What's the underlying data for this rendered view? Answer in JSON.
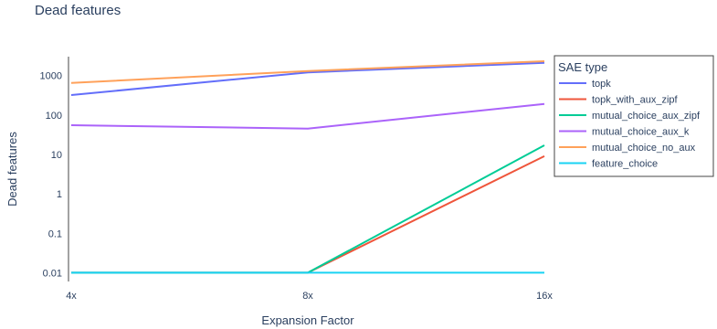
{
  "chart_data": {
    "type": "line",
    "title": "Dead features",
    "xlabel": "Expansion Factor",
    "ylabel": "Dead features",
    "y_scale": "log",
    "ylim": [
      0.006,
      3000
    ],
    "x_categories": [
      "4x",
      "8x",
      "16x"
    ],
    "y_ticks": [
      {
        "value": 1000,
        "label": "1000"
      },
      {
        "value": 100,
        "label": "100"
      },
      {
        "value": 10,
        "label": "10"
      },
      {
        "value": 1,
        "label": "1"
      },
      {
        "value": 0.1,
        "label": "0.1"
      },
      {
        "value": 0.01,
        "label": "0.01"
      }
    ],
    "grid": false,
    "legend_title": "SAE type",
    "legend_position": "right",
    "series": [
      {
        "name": "topk",
        "color": "#636efa",
        "values": [
          320,
          1200,
          2100
        ]
      },
      {
        "name": "topk_with_aux_zipf",
        "color": "#ef553b",
        "values": [
          0.01,
          0.01,
          9
        ]
      },
      {
        "name": "mutual_choice_aux_zipf",
        "color": "#00cc96",
        "values": [
          0.01,
          0.01,
          17
        ]
      },
      {
        "name": "mutual_choice_aux_k",
        "color": "#ab63fa",
        "values": [
          55,
          45,
          190
        ]
      },
      {
        "name": "mutual_choice_no_aux",
        "color": "#ffa15a",
        "values": [
          650,
          1300,
          2300
        ]
      },
      {
        "name": "feature_choice",
        "color": "#19d3f3",
        "values": [
          0.01,
          0.01,
          0.01
        ]
      }
    ]
  }
}
